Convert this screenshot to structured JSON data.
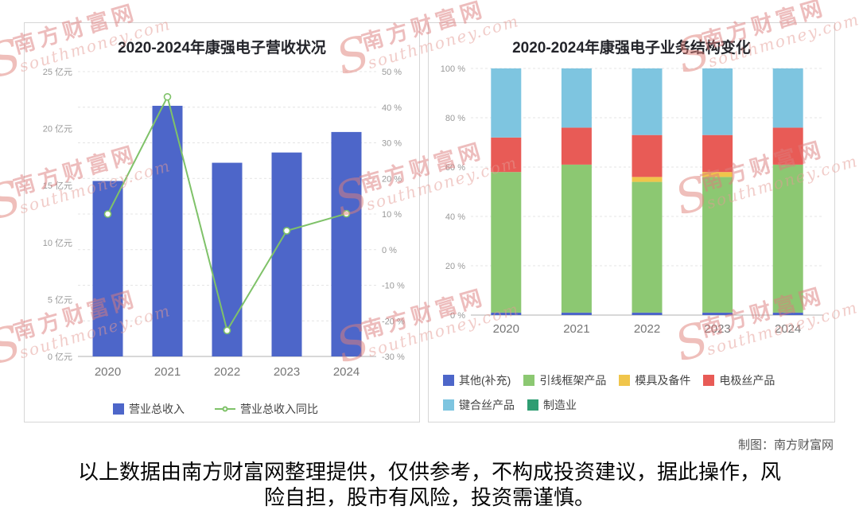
{
  "watermark": {
    "initial": "S",
    "cjk": "南方财富网",
    "latin": "southmoney.com"
  },
  "credit": "制图：南方财富网",
  "disclaimer": "以上数据由南方财富网整理提供，仅供参考，不构成投资建议，据此操作，风险自担，股市有风险，投资需谨慎。",
  "chart_data": [
    {
      "type": "bar",
      "subtype": "bar-line-combo",
      "title": "2020-2024年康强电子营收状况",
      "categories": [
        "2020",
        "2021",
        "2022",
        "2023",
        "2024"
      ],
      "series": [
        {
          "name": "营业总收入",
          "type": "bar",
          "axis": "left",
          "color": "#4d66c9",
          "values": [
            15.4,
            22,
            17,
            17.9,
            19.7
          ]
        },
        {
          "name": "营业总收入同比",
          "type": "line",
          "axis": "right",
          "color": "#7fc269",
          "values": [
            10,
            42.9,
            -22.7,
            5.3,
            10.1
          ]
        }
      ],
      "left_axis": {
        "min": 0,
        "max": 25,
        "step": 5,
        "unit": "亿元"
      },
      "right_axis": {
        "min": -30,
        "max": 50,
        "step": 10,
        "unit": "%"
      },
      "grid": "dashed-horizontal",
      "legend_position": "bottom-center"
    },
    {
      "type": "bar",
      "subtype": "stacked-percent",
      "title": "2020-2024年康强电子业务结构变化",
      "categories": [
        "2020",
        "2021",
        "2022",
        "2023",
        "2024"
      ],
      "y_axis": {
        "min": 0,
        "max": 100,
        "step": 20,
        "unit": "%"
      },
      "series": [
        {
          "name": "其他(补充)",
          "color": "#4d66c9",
          "values": [
            1,
            1,
            1,
            1,
            1
          ]
        },
        {
          "name": "引线框架产品",
          "color": "#8cc872",
          "values": [
            57,
            60,
            53,
            55,
            60
          ]
        },
        {
          "name": "模具及备件",
          "color": "#f0c54b",
          "values": [
            0,
            0,
            2,
            2,
            0
          ]
        },
        {
          "name": "电极丝产品",
          "color": "#e85b56",
          "values": [
            14,
            15,
            17,
            15,
            15
          ]
        },
        {
          "name": "键合丝产品",
          "color": "#7ec5e0",
          "values": [
            28,
            24,
            27,
            27,
            24
          ]
        },
        {
          "name": "制造业",
          "color": "#2f9d72",
          "values": [
            0,
            0,
            0,
            0,
            0
          ]
        }
      ],
      "grid": "dashed-horizontal",
      "legend_position": "bottom-left"
    }
  ]
}
